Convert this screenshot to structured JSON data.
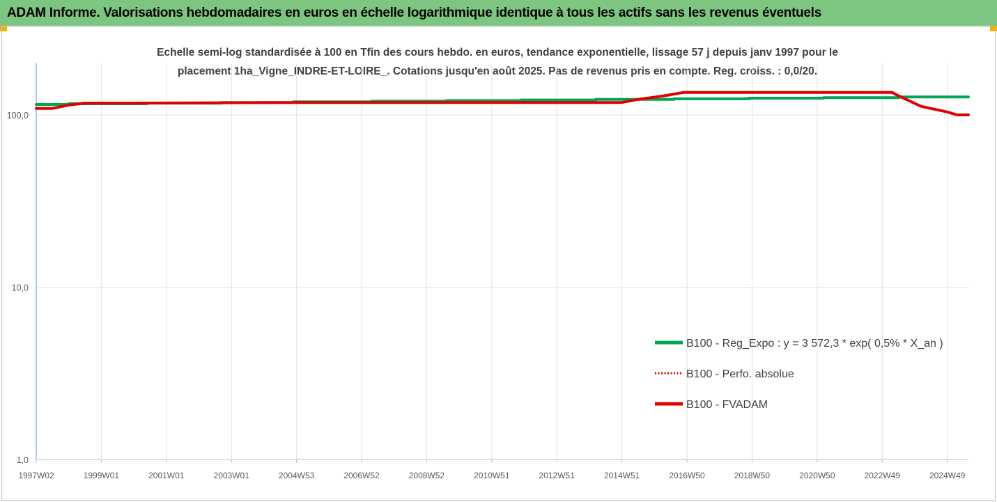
{
  "header": {
    "title": "ADAM Informe. Valorisations hebdomadaires en euros en échelle logarithmique identique à tous les actifs sans les revenus éventuels"
  },
  "chart_data": {
    "type": "line",
    "subtitle_lines": [
      "Echelle semi-log standardisée à 100 en Tfin des cours hebdo. en euros, tendance exponentielle, lissage 57 j depuis janv 1997 pour le",
      "placement 1ha_Vigne_INDRE-ET-LOIRE_. Cotations jusqu'en août 2025. Pas de revenus pris en compte. Reg. croiss. : 0,0/20."
    ],
    "y_scale": "log",
    "ylim": [
      1,
      200
    ],
    "y_ticks": [
      {
        "value": 1,
        "label": "1,0"
      },
      {
        "value": 10,
        "label": "10,0"
      },
      {
        "value": 100,
        "label": "100,0"
      }
    ],
    "x_range": [
      1997.0,
      2025.65
    ],
    "x_ticks": [
      {
        "value": 1997.0,
        "label": "1997W02"
      },
      {
        "value": 1999.0,
        "label": "1999W01"
      },
      {
        "value": 2001.0,
        "label": "2001W01"
      },
      {
        "value": 2003.0,
        "label": "2003W01"
      },
      {
        "value": 2005.0,
        "label": "2004W53"
      },
      {
        "value": 2007.0,
        "label": "2006W52"
      },
      {
        "value": 2009.0,
        "label": "2008W52"
      },
      {
        "value": 2011.0,
        "label": "2010W51"
      },
      {
        "value": 2013.0,
        "label": "2012W51"
      },
      {
        "value": 2015.0,
        "label": "2014W51"
      },
      {
        "value": 2017.0,
        "label": "2016W50"
      },
      {
        "value": 2019.0,
        "label": "2018W50"
      },
      {
        "value": 2021.0,
        "label": "2020W50"
      },
      {
        "value": 2023.0,
        "label": "2022W49"
      },
      {
        "value": 2025.0,
        "label": "2024W49"
      }
    ],
    "grid": "vertical",
    "legend_position": "right",
    "series": [
      {
        "name": "B100 - Reg_Expo : y = 3 572,3 * exp( 0,5% *  X_an )",
        "color": "#00a651",
        "style": "solid",
        "points": [
          [
            1997.0,
            115
          ],
          [
            1998.0,
            115
          ],
          [
            1998.0,
            116
          ],
          [
            2000.4,
            116
          ],
          [
            2000.4,
            117
          ],
          [
            2002.7,
            117
          ],
          [
            2002.7,
            118
          ],
          [
            2004.9,
            118
          ],
          [
            2004.9,
            119
          ],
          [
            2007.3,
            119
          ],
          [
            2007.3,
            120
          ],
          [
            2009.6,
            120
          ],
          [
            2009.6,
            121
          ],
          [
            2011.9,
            121
          ],
          [
            2011.9,
            122
          ],
          [
            2014.2,
            122
          ],
          [
            2014.2,
            123
          ],
          [
            2016.6,
            123
          ],
          [
            2016.6,
            124
          ],
          [
            2018.9,
            124
          ],
          [
            2018.9,
            125
          ],
          [
            2021.2,
            125
          ],
          [
            2021.2,
            126
          ],
          [
            2023.5,
            126
          ],
          [
            2023.5,
            127
          ],
          [
            2025.65,
            127
          ]
        ]
      },
      {
        "name": "B100 - Perfo. absolue",
        "color": "#e00000",
        "style": "dotted",
        "points": [
          [
            1997.0,
            109
          ],
          [
            1997.5,
            109
          ],
          [
            1998.0,
            114
          ],
          [
            1998.5,
            117
          ],
          [
            2000.0,
            117
          ],
          [
            2005.0,
            118
          ],
          [
            2010.0,
            118
          ],
          [
            2015.0,
            118
          ],
          [
            2015.5,
            123
          ],
          [
            2016.3,
            129
          ],
          [
            2016.9,
            135
          ],
          [
            2020.0,
            135
          ],
          [
            2023.3,
            135
          ],
          [
            2023.5,
            129
          ],
          [
            2024.2,
            112
          ],
          [
            2025.0,
            104
          ],
          [
            2025.3,
            100
          ],
          [
            2025.65,
            100
          ]
        ]
      },
      {
        "name": "B100 - FVADAM",
        "color": "#e00000",
        "style": "solid",
        "points": [
          [
            1997.0,
            109
          ],
          [
            1997.5,
            109
          ],
          [
            1998.0,
            114
          ],
          [
            1998.5,
            117
          ],
          [
            2000.0,
            117
          ],
          [
            2005.0,
            118
          ],
          [
            2010.0,
            118
          ],
          [
            2015.0,
            118
          ],
          [
            2015.5,
            123
          ],
          [
            2016.3,
            129
          ],
          [
            2016.9,
            135
          ],
          [
            2020.0,
            135
          ],
          [
            2023.3,
            135
          ],
          [
            2023.5,
            129
          ],
          [
            2024.2,
            112
          ],
          [
            2025.0,
            104
          ],
          [
            2025.3,
            100
          ],
          [
            2025.65,
            100
          ]
        ]
      }
    ]
  }
}
